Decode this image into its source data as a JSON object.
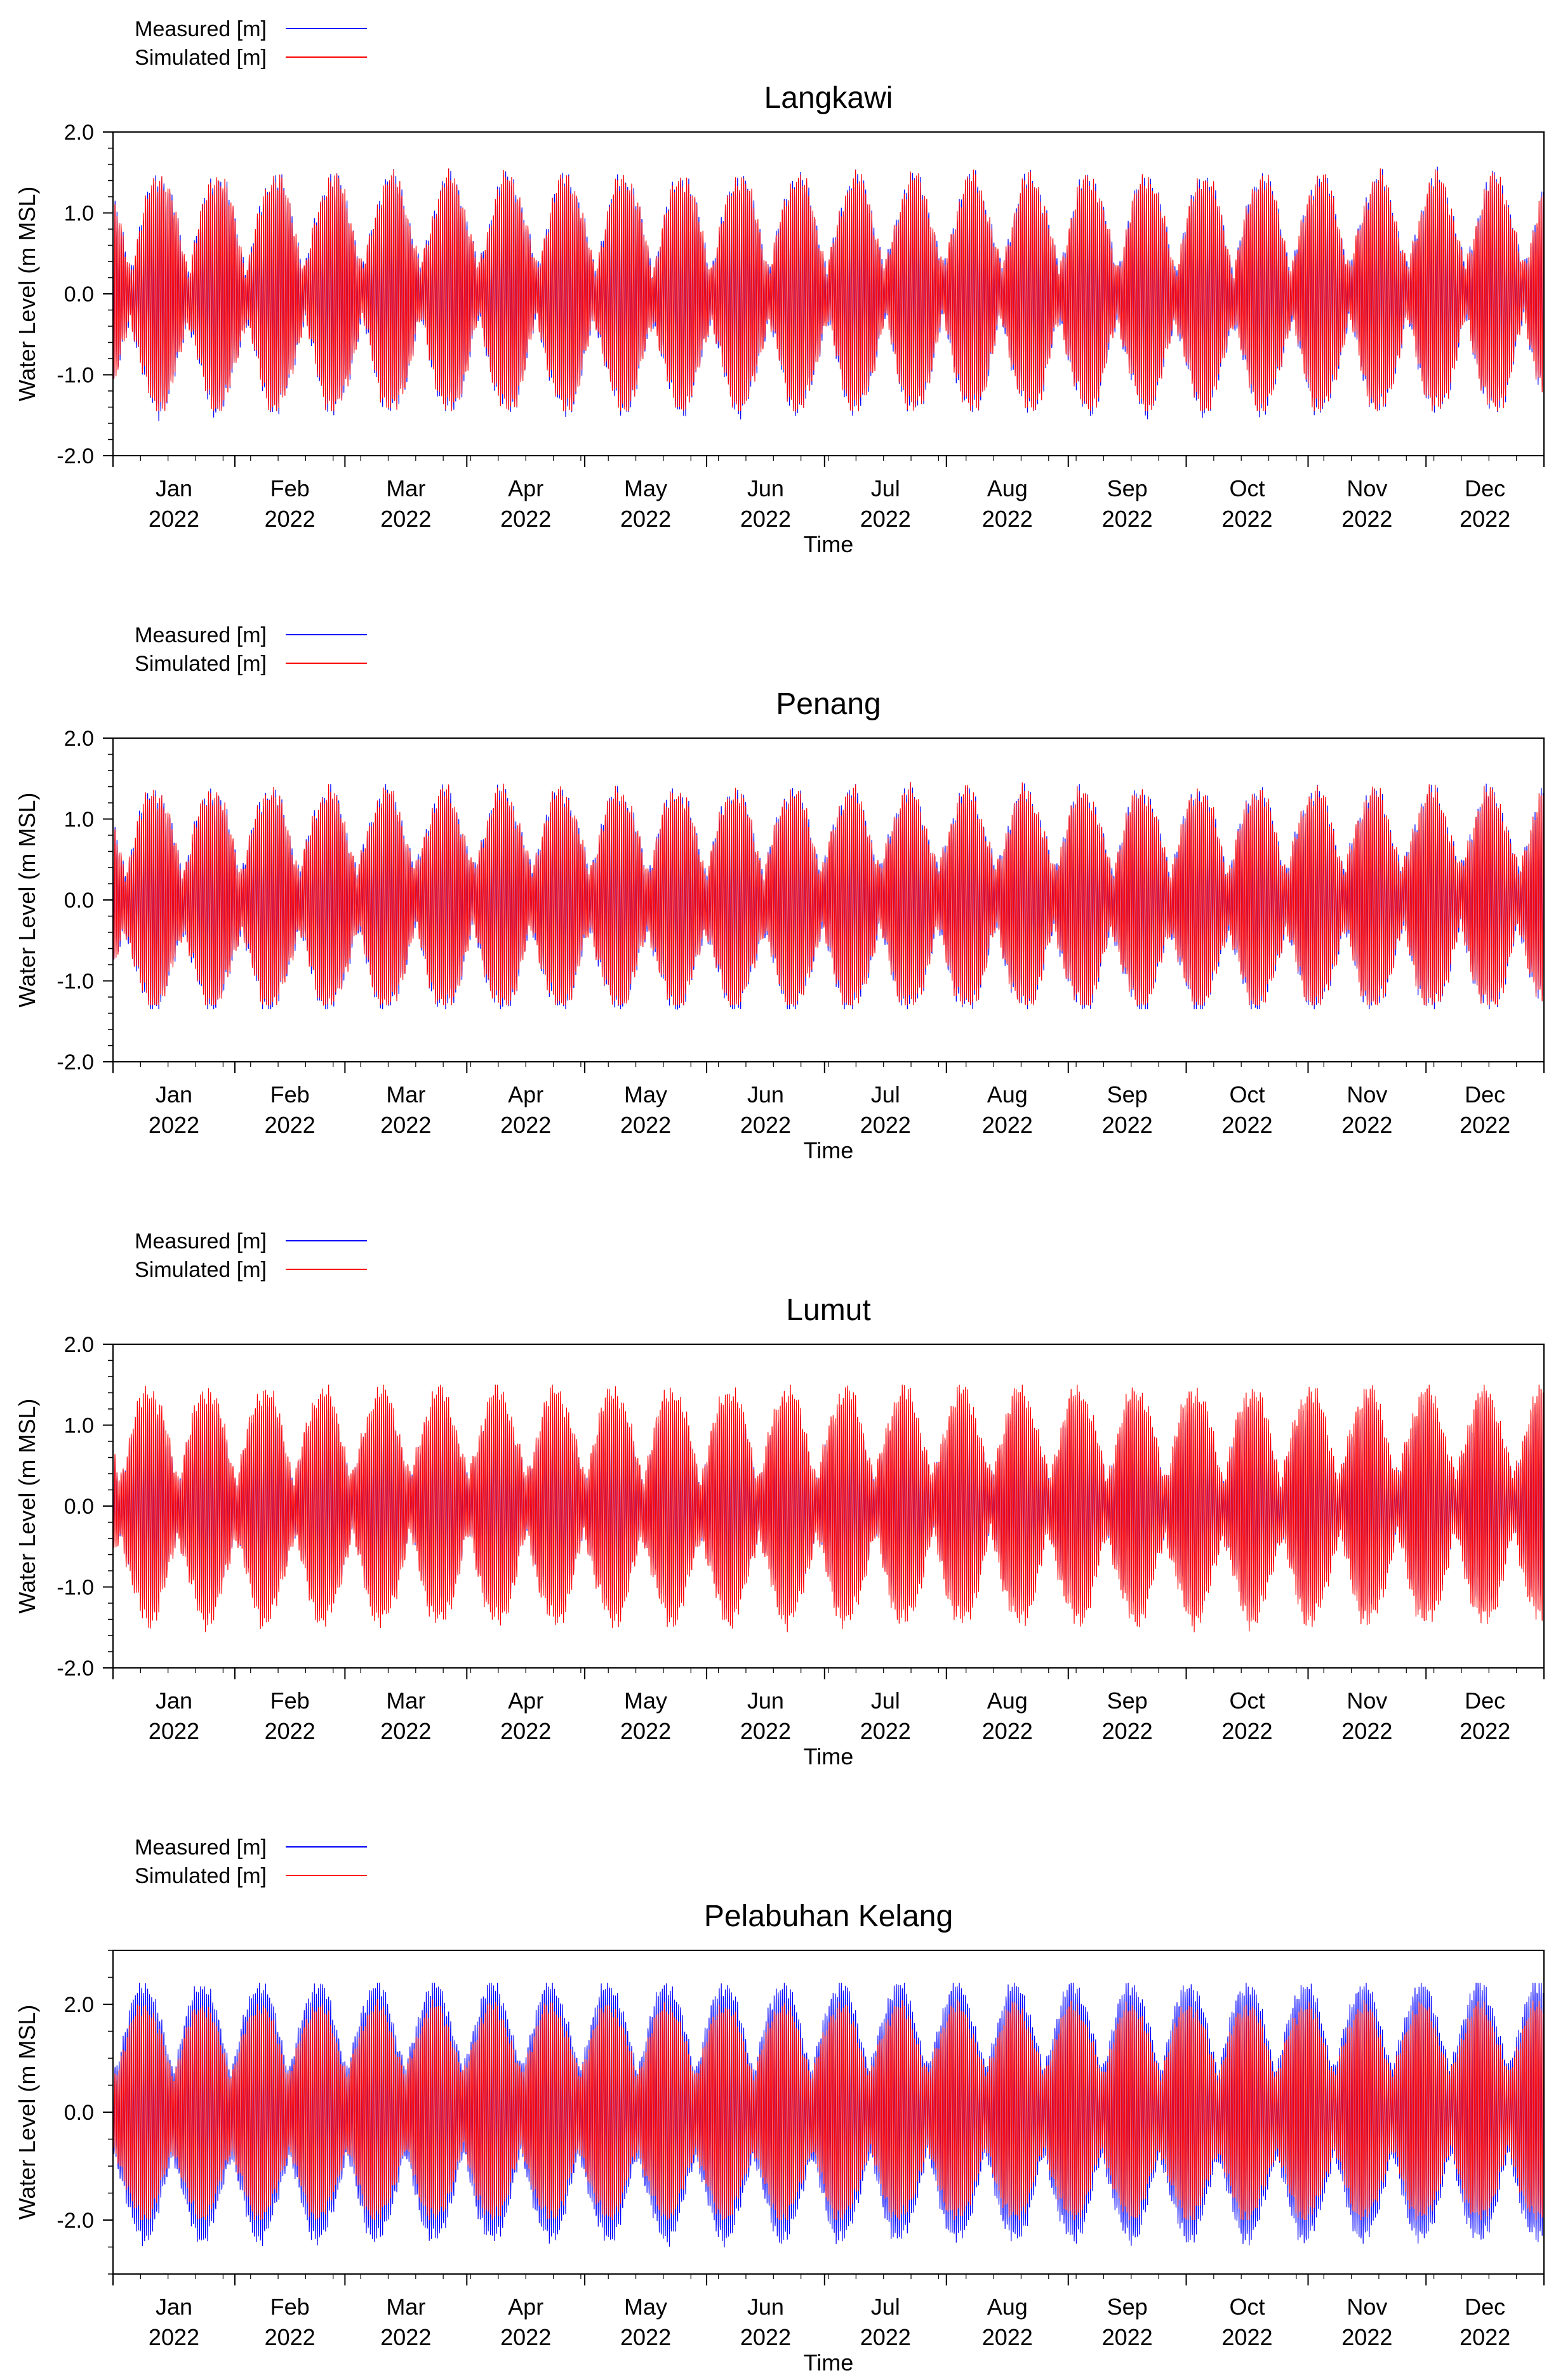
{
  "colors": {
    "measured": "#0000ff",
    "simulated": "#ff0000",
    "axis": "#000000"
  },
  "legend": {
    "measured_label": "Measured [m]",
    "simulated_label": "Simulated [m]"
  },
  "chart_data": [
    {
      "type": "line",
      "title": "Langkawi",
      "xlabel": "Time",
      "ylabel": "Water Level (m MSL)",
      "ylim": [
        -2.0,
        2.0
      ],
      "yticks": [
        -2.0,
        -1.0,
        0.0,
        1.0,
        2.0
      ],
      "ytick_labels": [
        "-2.0",
        "-1.0",
        "0.0",
        "1.0",
        "2.0"
      ],
      "x_range": [
        "2022-01-01",
        "2022-12-31"
      ],
      "xtick_months": [
        "Jan",
        "Feb",
        "Mar",
        "Apr",
        "May",
        "Jun",
        "Jul",
        "Aug",
        "Sep",
        "Oct",
        "Nov",
        "Dec"
      ],
      "xtick_year": "2022",
      "series": [
        {
          "name": "Measured [m]",
          "color": "#0000ff",
          "spring_amplitude": 1.45,
          "neap_amplitude": 0.3,
          "max": 1.6,
          "min": -1.6
        },
        {
          "name": "Simulated [m]",
          "color": "#ff0000",
          "spring_amplitude": 1.45,
          "neap_amplitude": 0.3,
          "max": 1.55,
          "min": -1.45
        }
      ]
    },
    {
      "type": "line",
      "title": "Penang",
      "xlabel": "Time",
      "ylabel": "Water Level (m MSL)",
      "ylim": [
        -2.0,
        2.0
      ],
      "yticks": [
        -2.0,
        -1.0,
        0.0,
        1.0,
        2.0
      ],
      "ytick_labels": [
        "-2.0",
        "-1.0",
        "0.0",
        "1.0",
        "2.0"
      ],
      "x_range": [
        "2022-01-01",
        "2022-12-31"
      ],
      "xtick_months": [
        "Jan",
        "Feb",
        "Mar",
        "Apr",
        "May",
        "Jun",
        "Jul",
        "Aug",
        "Sep",
        "Oct",
        "Nov",
        "Dec"
      ],
      "xtick_year": "2022",
      "series": [
        {
          "name": "Measured [m]",
          "color": "#0000ff",
          "spring_amplitude": 1.35,
          "neap_amplitude": 0.35,
          "max": 1.5,
          "min": -1.35
        },
        {
          "name": "Simulated [m]",
          "color": "#ff0000",
          "spring_amplitude": 1.35,
          "neap_amplitude": 0.35,
          "max": 1.5,
          "min": -1.3
        }
      ]
    },
    {
      "type": "line",
      "title": "Lumut",
      "xlabel": "Time",
      "ylabel": "Water Level (m MSL)",
      "ylim": [
        -2.0,
        2.0
      ],
      "yticks": [
        -2.0,
        -1.0,
        0.0,
        1.0,
        2.0
      ],
      "ytick_labels": [
        "-2.0",
        "-1.0",
        "0.0",
        "1.0",
        "2.0"
      ],
      "x_range": [
        "2022-01-01",
        "2022-12-31"
      ],
      "xtick_months": [
        "Jan",
        "Feb",
        "Mar",
        "Apr",
        "May",
        "Jun",
        "Jul",
        "Aug",
        "Sep",
        "Oct",
        "Nov",
        "Dec"
      ],
      "xtick_year": "2022",
      "series": [
        {
          "name": "Measured [m]",
          "color": "#0000ff",
          "spring_amplitude": 1.3,
          "neap_amplitude": 0.3,
          "max": 1.5,
          "min": -1.4
        },
        {
          "name": "Simulated [m]",
          "color": "#ff0000",
          "spring_amplitude": 1.45,
          "neap_amplitude": 0.35,
          "max": 1.5,
          "min": -1.6
        }
      ]
    },
    {
      "type": "line",
      "title": "Pelabuhan Kelang",
      "xlabel": "Time",
      "ylabel": "Water Level (m MSL)",
      "ylim": [
        -3.0,
        3.0
      ],
      "yticks": [
        -2.0,
        0.0,
        2.0
      ],
      "ytick_labels": [
        "-2.0",
        "0.0",
        "2.0"
      ],
      "x_range": [
        "2022-01-01",
        "2022-12-31"
      ],
      "xtick_months": [
        "Jan",
        "Feb",
        "Mar",
        "Apr",
        "May",
        "Jun",
        "Jul",
        "Aug",
        "Sep",
        "Oct",
        "Nov",
        "Dec"
      ],
      "xtick_year": "2022",
      "series": [
        {
          "name": "Measured [m]",
          "color": "#0000ff",
          "spring_amplitude": 2.4,
          "neap_amplitude": 0.8,
          "max": 2.4,
          "min": -2.8
        },
        {
          "name": "Simulated [m]",
          "color": "#ff0000",
          "spring_amplitude": 2.0,
          "neap_amplitude": 0.7,
          "max": 2.1,
          "min": -2.0
        }
      ]
    }
  ]
}
